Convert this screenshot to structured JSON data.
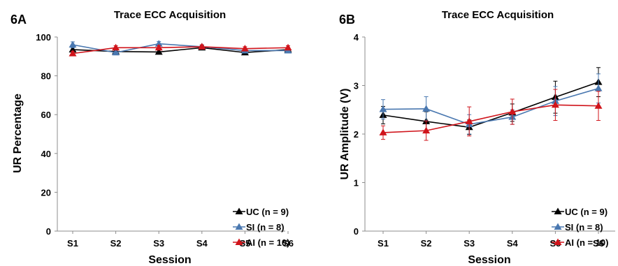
{
  "colors": {
    "UC": "#000000",
    "SI": "#4a78b0",
    "AI": "#d0141b",
    "axis": "#8c8c8c"
  },
  "chart_data": [
    {
      "type": "line",
      "panel_label": "6A",
      "title": "Trace ECC Acquisition",
      "xlabel": "Session",
      "ylabel": "UR Percentage",
      "categories": [
        "S1",
        "S2",
        "S3",
        "S4",
        "S5",
        "S6"
      ],
      "ylim": [
        0,
        100
      ],
      "yticks": [
        "0",
        "20",
        "40",
        "60",
        "80",
        "100"
      ],
      "grid": false,
      "legend_position": "bottom-right",
      "series": [
        {
          "name": "UC (n = 9)",
          "key": "UC",
          "values": [
            93.5,
            92.5,
            92.3,
            94.5,
            92.0,
            93.5
          ],
          "err": [
            1.2,
            1.0,
            1.0,
            1.0,
            1.0,
            1.0
          ]
        },
        {
          "name": "SI (n = 8)",
          "key": "SI",
          "values": [
            96.0,
            92.0,
            96.5,
            95.0,
            93.0,
            93.0
          ],
          "err": [
            1.5,
            1.2,
            1.2,
            1.0,
            1.0,
            1.2
          ]
        },
        {
          "name": "AI (n = 10)",
          "key": "AI",
          "values": [
            91.5,
            94.5,
            94.5,
            95.0,
            94.0,
            94.5
          ],
          "err": [
            1.2,
            1.0,
            1.0,
            1.0,
            1.0,
            1.0
          ]
        }
      ]
    },
    {
      "type": "line",
      "panel_label": "6B",
      "title": "Trace ECC Acquisition",
      "xlabel": "Session",
      "ylabel": "UR Amplitude (V)",
      "categories": [
        "S1",
        "S2",
        "S3",
        "S4",
        "S5",
        "S6"
      ],
      "ylim": [
        0,
        4
      ],
      "yticks": [
        "0",
        "1",
        "2",
        "3",
        "4"
      ],
      "grid": false,
      "legend_position": "bottom-right",
      "series": [
        {
          "name": "UC (n = 9)",
          "key": "UC",
          "values": [
            2.39,
            2.26,
            2.14,
            2.44,
            2.76,
            3.07
          ],
          "err": [
            0.18,
            0.2,
            0.15,
            0.18,
            0.33,
            0.3
          ]
        },
        {
          "name": "SI (n = 8)",
          "key": "SI",
          "values": [
            2.51,
            2.52,
            2.2,
            2.35,
            2.68,
            2.94
          ],
          "err": [
            0.2,
            0.25,
            0.2,
            0.15,
            0.3,
            0.3
          ]
        },
        {
          "name": "AI (n = 10)",
          "key": "AI",
          "values": [
            2.03,
            2.07,
            2.26,
            2.46,
            2.6,
            2.58
          ],
          "err": [
            0.14,
            0.2,
            0.3,
            0.26,
            0.32,
            0.3
          ]
        }
      ]
    }
  ]
}
